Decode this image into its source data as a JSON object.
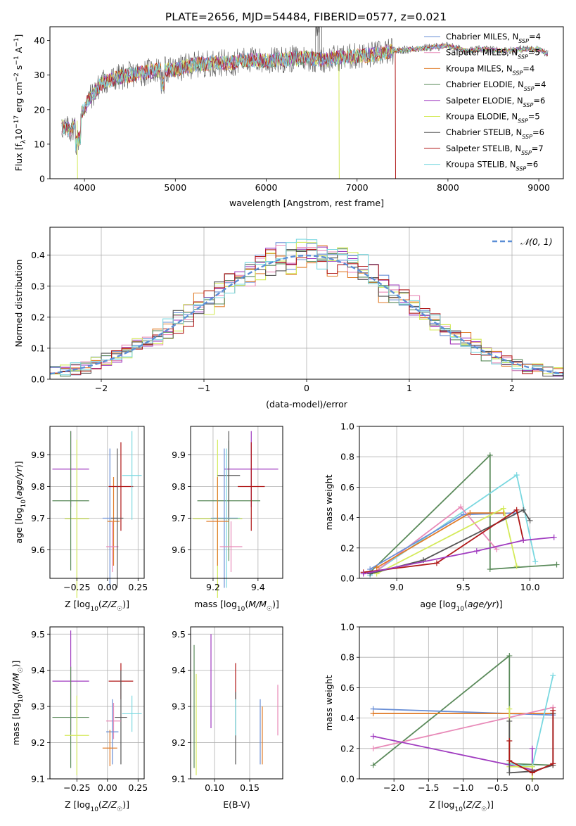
{
  "figure": {
    "title": "PLATE=2656, MJD=54484, FIBERID=0577, z=0.021"
  },
  "colors": {
    "Chabrier MILES": "#6a8fd6",
    "Salpeter MILES": "#e88ab8",
    "Kroupa MILES": "#e07b28",
    "Chabrier ELODIE": "#5a8a5a",
    "Salpeter ELODIE": "#a03cc0",
    "Kroupa ELODIE": "#d4ea5a",
    "Chabrier STELIB": "#555555",
    "Salpeter STELIB": "#b01818",
    "Kroupa STELIB": "#7ad8e0"
  },
  "chart_data": [
    {
      "id": "spectrum",
      "type": "line",
      "title": "PLATE=2656, MJD=54484, FIBERID=0577, z=0.021",
      "xlabel": "wavelength [Angstrom, rest frame]",
      "ylabel": "Flux [f_λ 10⁻¹⁷ erg cm⁻² s⁻¹ A⁻¹]",
      "xlim": [
        3620,
        9270
      ],
      "ylim": [
        0,
        44
      ],
      "xticks": [
        4000,
        5000,
        6000,
        7000,
        8000,
        9000
      ],
      "yticks": [
        0,
        10,
        20,
        30,
        40
      ],
      "legend_position": "top-right",
      "legend": [
        {
          "label": "Chabrier MILES, N_SSP=4",
          "text": "Chabrier MILES, N",
          "sub": "SSP",
          "tail": "=4",
          "color": "#6a8fd6"
        },
        {
          "label": "Salpeter MILES, N_SSP=5",
          "text": "Salpeter MILES, N",
          "sub": "SSP",
          "tail": "=5",
          "color": "#e88ab8"
        },
        {
          "label": "Kroupa MILES, N_SSP=4",
          "text": "Kroupa MILES, N",
          "sub": "SSP",
          "tail": "=4",
          "color": "#e07b28"
        },
        {
          "label": "Chabrier ELODIE, N_SSP=4",
          "text": "Chabrier ELODIE, N",
          "sub": "SSP",
          "tail": "=4",
          "color": "#5a8a5a"
        },
        {
          "label": "Salpeter ELODIE, N_SSP=6",
          "text": "Salpeter ELODIE, N",
          "sub": "SSP",
          "tail": "=6",
          "color": "#a03cc0"
        },
        {
          "label": "Kroupa ELODIE, N_SSP=5",
          "text": "Kroupa ELODIE, N",
          "sub": "SSP",
          "tail": "=5",
          "color": "#d4ea5a"
        },
        {
          "label": "Chabrier STELIB, N_SSP=6",
          "text": "Chabrier STELIB, N",
          "sub": "SSP",
          "tail": "=6",
          "color": "#555555"
        },
        {
          "label": "Salpeter STELIB, N_SSP=7",
          "text": "Salpeter STELIB, N",
          "sub": "SSP",
          "tail": "=7",
          "color": "#b01818"
        },
        {
          "label": "Kroupa STELIB, N_SSP=6",
          "text": "Kroupa STELIB, N",
          "sub": "SSP",
          "tail": "=6",
          "color": "#7ad8e0"
        }
      ],
      "continuum": {
        "x": [
          3750,
          3850,
          3950,
          4050,
          4200,
          4400,
          4600,
          4800,
          5000,
          5200,
          5400,
          5600,
          5800,
          6000,
          6200,
          6400,
          6600,
          6800,
          7000,
          7200,
          7400,
          7600,
          7800,
          8000,
          8200,
          8400,
          8600,
          8800,
          9000,
          9100
        ],
        "y": [
          15,
          14,
          18,
          23,
          28,
          29.5,
          30.5,
          31.5,
          31.5,
          33,
          33.5,
          33.5,
          34.5,
          34,
          34.5,
          35,
          34.5,
          35,
          35.5,
          36,
          37,
          37.5,
          38,
          38.5,
          37,
          37.5,
          37,
          37.5,
          37.5,
          36
        ]
      },
      "drops": [
        {
          "model": "Kroupa ELODIE",
          "x": 3920,
          "to": 0
        },
        {
          "model": "Kroupa ELODIE",
          "x": 6800,
          "to": 0
        },
        {
          "model": "Salpeter STELIB",
          "x": 7420,
          "to": 0
        }
      ]
    },
    {
      "id": "residual-hist",
      "type": "histogram",
      "xlabel": "(data-model)/error",
      "ylabel": "Normed distribution",
      "xlim": [
        -2.5,
        2.5
      ],
      "ylim": [
        0,
        0.49
      ],
      "xticks": [
        -2,
        -1,
        0,
        1,
        2
      ],
      "yticks": [
        0.0,
        0.1,
        0.2,
        0.3,
        0.4
      ],
      "bin_width": 0.1,
      "bin_start": -2.5,
      "reference": {
        "label": "𝒩(0, 1)",
        "mean": 0,
        "sigma": 1,
        "color": "#5b8ed6",
        "style": "dashed"
      },
      "legend_position": "top-right"
    },
    {
      "id": "Z-vs-age",
      "type": "errorbar",
      "xlabel": "Z [log10(Z/Z☉)]",
      "ylabel": "age [log10(age/yr)]",
      "xlim": [
        -0.47,
        0.3
      ],
      "ylim": [
        9.51,
        9.99
      ],
      "xticks": [
        -0.25,
        0.0,
        0.25
      ],
      "yticks": [
        9.6,
        9.7,
        9.8,
        9.9
      ],
      "points": [
        {
          "model": "Salpeter ELODIE",
          "x": -0.3,
          "xerr": 0.15,
          "y": 9.855,
          "yerr": 0.12
        },
        {
          "model": "Kroupa ELODIE",
          "x": -0.25,
          "xerr": 0.1,
          "y": 9.698,
          "yerr": 0.25
        },
        {
          "model": "Chabrier ELODIE",
          "x": -0.3,
          "xerr": 0.15,
          "y": 9.755,
          "yerr": 0.22
        },
        {
          "model": "Chabrier MILES",
          "x": 0.02,
          "xerr": 0.06,
          "y": 9.7,
          "yerr": 0.22
        },
        {
          "model": "Kroupa MILES",
          "x": 0.05,
          "xerr": 0.05,
          "y": 9.69,
          "yerr": 0.14
        },
        {
          "model": "Salpeter MILES",
          "x": 0.04,
          "xerr": 0.05,
          "y": 9.61,
          "yerr": 0.08
        },
        {
          "model": "Salpeter STELIB",
          "x": 0.11,
          "xerr": 0.1,
          "y": 9.8,
          "yerr": 0.14
        },
        {
          "model": "Chabrier STELIB",
          "x": 0.08,
          "xerr": 0.05,
          "y": 9.7,
          "yerr": 0.22
        },
        {
          "model": "Kroupa STELIB",
          "x": 0.2,
          "xerr": 0.08,
          "y": 9.835,
          "yerr": 0.14
        }
      ]
    },
    {
      "id": "mass-vs-age",
      "type": "errorbar",
      "xlabel": "mass [log10(M/M☉)]",
      "ylabel": "",
      "xlim": [
        9.1,
        9.51
      ],
      "ylim": [
        9.51,
        9.99
      ],
      "xticks": [
        9.2,
        9.4
      ],
      "yticks": [
        9.6,
        9.7,
        9.8,
        9.9
      ],
      "points": [
        {
          "model": "Salpeter ELODIE",
          "x": 9.37,
          "xerr": 0.12,
          "y": 9.855,
          "yerr": 0.12
        },
        {
          "model": "Chabrier ELODIE",
          "x": 9.27,
          "xerr": 0.14,
          "y": 9.755,
          "yerr": 0.19
        },
        {
          "model": "Kroupa ELODIE",
          "x": 9.22,
          "xerr": 0.11,
          "y": 9.698,
          "yerr": 0.25
        },
        {
          "model": "Salpeter STELIB",
          "x": 9.37,
          "xerr": 0.06,
          "y": 9.8,
          "yerr": 0.14
        },
        {
          "model": "Chabrier STELIB",
          "x": 9.27,
          "xerr": 0.05,
          "y": 9.835,
          "yerr": 0.14
        },
        {
          "model": "Kroupa STELIB",
          "x": 9.26,
          "xerr": 0.06,
          "y": 9.7,
          "yerr": 0.22
        },
        {
          "model": "Chabrier MILES",
          "x": 9.25,
          "xerr": 0.06,
          "y": 9.7,
          "yerr": 0.22
        },
        {
          "model": "Kroupa MILES",
          "x": 9.22,
          "xerr": 0.05,
          "y": 9.69,
          "yerr": 0.14
        },
        {
          "model": "Salpeter MILES",
          "x": 9.28,
          "xerr": 0.05,
          "y": 9.61,
          "yerr": 0.08
        }
      ]
    },
    {
      "id": "age-weights",
      "type": "line",
      "xlabel": "age [log10(age/yr)]",
      "ylabel": "mass weight",
      "xlim": [
        8.72,
        10.25
      ],
      "ylim": [
        0,
        1.0
      ],
      "xticks": [
        9.0,
        9.5,
        10.0
      ],
      "yticks": [
        0.0,
        0.2,
        0.4,
        0.6,
        0.8,
        1.0
      ],
      "series": [
        {
          "model": "Chabrier ELODIE",
          "x": [
            8.8,
            9.7,
            9.7,
            10.2
          ],
          "y": [
            0.04,
            0.81,
            0.06,
            0.09
          ]
        },
        {
          "model": "Kroupa STELIB",
          "x": [
            8.8,
            9.9,
            10.04
          ],
          "y": [
            0.02,
            0.68,
            0.11
          ]
        },
        {
          "model": "Salpeter MILES",
          "x": [
            8.85,
            9.48,
            9.75
          ],
          "y": [
            0.05,
            0.47,
            0.19
          ]
        },
        {
          "model": "Chabrier MILES",
          "x": [
            8.8,
            9.5,
            9.88
          ],
          "y": [
            0.06,
            0.42,
            0.43
          ]
        },
        {
          "model": "Kroupa MILES",
          "x": [
            8.85,
            9.55,
            9.8
          ],
          "y": [
            0.07,
            0.43,
            0.43
          ]
        },
        {
          "model": "Kroupa ELODIE",
          "x": [
            8.85,
            9.8,
            9.9
          ],
          "y": [
            0.03,
            0.46,
            0.08
          ]
        },
        {
          "model": "Chabrier STELIB",
          "x": [
            8.8,
            9.2,
            9.95,
            10.0
          ],
          "y": [
            0.03,
            0.12,
            0.45,
            0.38
          ]
        },
        {
          "model": "Salpeter STELIB",
          "x": [
            8.75,
            9.3,
            9.9,
            9.95
          ],
          "y": [
            0.04,
            0.1,
            0.45,
            0.25
          ]
        },
        {
          "model": "Salpeter ELODIE",
          "x": [
            8.75,
            9.6,
            9.95,
            10.18
          ],
          "y": [
            0.03,
            0.18,
            0.25,
            0.27
          ]
        }
      ]
    },
    {
      "id": "Z-vs-mass",
      "type": "errorbar",
      "xlabel": "Z [log10(Z/Z☉)]",
      "ylabel": "mass [log10(M/M☉)]",
      "xlim": [
        -0.47,
        0.3
      ],
      "ylim": [
        9.1,
        9.52
      ],
      "xticks": [
        -0.25,
        0.0,
        0.25
      ],
      "yticks": [
        9.1,
        9.2,
        9.3,
        9.4,
        9.5
      ],
      "points": [
        {
          "model": "Salpeter ELODIE",
          "x": -0.3,
          "xerr": 0.15,
          "y": 9.37,
          "yerr": 0.14
        },
        {
          "model": "Chabrier ELODIE",
          "x": -0.3,
          "xerr": 0.15,
          "y": 9.27,
          "yerr": 0.14
        },
        {
          "model": "Kroupa ELODIE",
          "x": -0.25,
          "xerr": 0.1,
          "y": 9.22,
          "yerr": 0.11
        },
        {
          "model": "Salpeter STELIB",
          "x": 0.11,
          "xerr": 0.1,
          "y": 9.37,
          "yerr": 0.05
        },
        {
          "model": "Chabrier STELIB",
          "x": 0.11,
          "xerr": 0.05,
          "y": 9.27,
          "yerr": 0.13
        },
        {
          "model": "Kroupa STELIB",
          "x": 0.2,
          "xerr": 0.08,
          "y": 9.28,
          "yerr": 0.05
        },
        {
          "model": "Salpeter MILES",
          "x": 0.05,
          "xerr": 0.06,
          "y": 9.26,
          "yerr": 0.05
        },
        {
          "model": "Chabrier MILES",
          "x": 0.04,
          "xerr": 0.05,
          "y": 9.23,
          "yerr": 0.09
        },
        {
          "model": "Kroupa MILES",
          "x": 0.02,
          "xerr": 0.06,
          "y": 9.185,
          "yerr": 0.05
        }
      ]
    },
    {
      "id": "ebv-vs-mass",
      "type": "errorbar",
      "xlabel": "E(B-V)",
      "ylabel": "",
      "xlim": [
        0.066,
        0.197
      ],
      "ylim": [
        9.1,
        9.52
      ],
      "xticks": [
        0.1,
        0.15
      ],
      "yticks": [
        9.1,
        9.2,
        9.3,
        9.4,
        9.5
      ],
      "points": [
        {
          "model": "Chabrier ELODIE",
          "x": 0.071,
          "y": 9.3,
          "yerr": 0.17
        },
        {
          "model": "Kroupa ELODIE",
          "x": 0.074,
          "y": 9.25,
          "yerr": 0.14
        },
        {
          "model": "Salpeter ELODIE",
          "x": 0.095,
          "y": 9.37,
          "yerr": 0.13
        },
        {
          "model": "Salpeter STELIB",
          "x": 0.13,
          "y": 9.37,
          "yerr": 0.05
        },
        {
          "model": "Chabrier STELIB",
          "x": 0.13,
          "y": 9.24,
          "yerr": 0.1
        },
        {
          "model": "Kroupa STELIB",
          "x": 0.13,
          "y": 9.27,
          "yerr": 0.05
        },
        {
          "model": "Chabrier MILES",
          "x": 0.165,
          "y": 9.23,
          "yerr": 0.09
        },
        {
          "model": "Kroupa MILES",
          "x": 0.168,
          "y": 9.22,
          "yerr": 0.08
        },
        {
          "model": "Salpeter MILES",
          "x": 0.19,
          "y": 9.29,
          "yerr": 0.07
        }
      ]
    },
    {
      "id": "Z-weights",
      "type": "line",
      "xlabel": "Z [log10(Z/Z☉)]",
      "ylabel": "mass weight",
      "xlim": [
        -2.5,
        0.45
      ],
      "ylim": [
        0,
        1.0
      ],
      "xticks": [
        -2.0,
        -1.5,
        -1.0,
        -0.5,
        0.0
      ],
      "yticks": [
        0.0,
        0.2,
        0.4,
        0.6,
        0.8,
        1.0
      ],
      "series": [
        {
          "model": "Chabrier ELODIE",
          "x": [
            -2.3,
            -0.33,
            -0.33,
            0.3
          ],
          "y": [
            0.09,
            0.81,
            0.1,
            0.09
          ]
        },
        {
          "model": "Chabrier MILES",
          "x": [
            -2.3,
            0.3
          ],
          "y": [
            0.46,
            0.42
          ]
        },
        {
          "model": "Kroupa MILES",
          "x": [
            -2.3,
            0.3
          ],
          "y": [
            0.43,
            0.43
          ]
        },
        {
          "model": "Salpeter MILES",
          "x": [
            -2.3,
            0.3
          ],
          "y": [
            0.2,
            0.47
          ]
        },
        {
          "model": "Salpeter ELODIE",
          "x": [
            -2.3,
            0.0,
            0.0
          ],
          "y": [
            0.28,
            0.06,
            0.2
          ]
        },
        {
          "model": "Kroupa STELIB",
          "x": [
            -0.33,
            0.0,
            0.3
          ],
          "y": [
            0.1,
            0.08,
            0.68
          ]
        },
        {
          "model": "Kroupa ELODIE",
          "x": [
            -0.33,
            -0.33,
            0.0,
            0.0
          ],
          "y": [
            0.46,
            0.08,
            0.08,
            0.0
          ]
        },
        {
          "model": "Chabrier STELIB",
          "x": [
            -0.33,
            -0.33,
            0.0,
            0.3,
            0.3
          ],
          "y": [
            0.38,
            0.04,
            0.05,
            0.09,
            0.43
          ]
        },
        {
          "model": "Salpeter STELIB",
          "x": [
            -0.33,
            -0.33,
            0.0,
            0.3,
            0.3
          ],
          "y": [
            0.25,
            0.12,
            0.04,
            0.1,
            0.45
          ]
        }
      ]
    }
  ]
}
